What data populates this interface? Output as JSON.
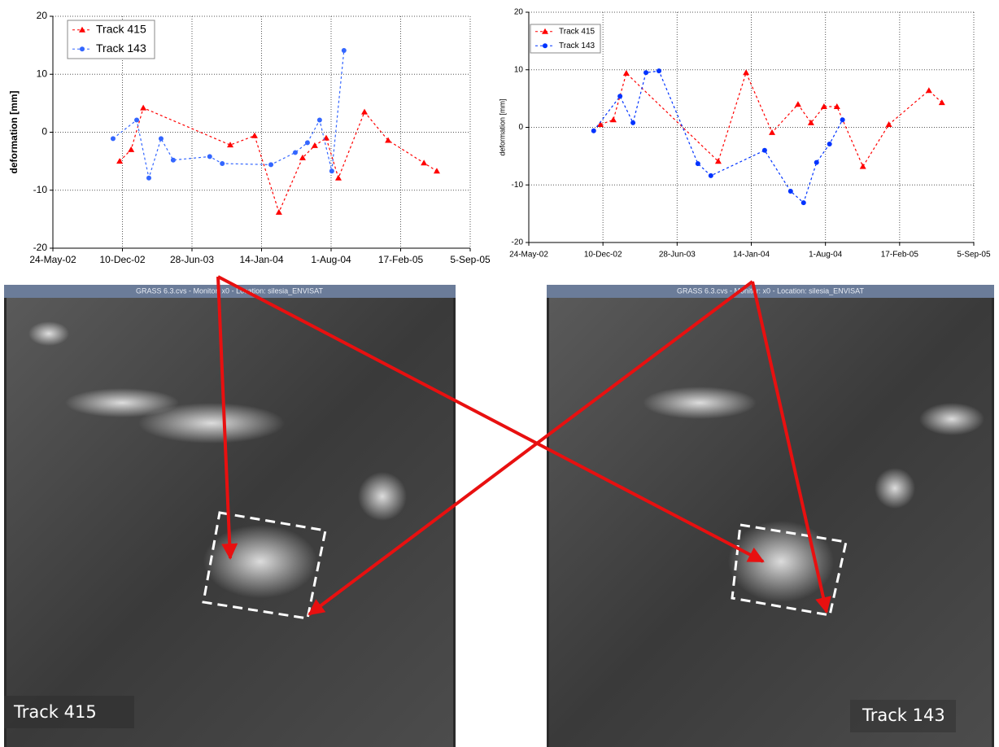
{
  "chart_data": [
    {
      "type": "line",
      "ylabel": "deformation [mm]",
      "xlim": [
        "2002-05-24",
        "2005-09-05"
      ],
      "xticks": [
        {
          "value": "2002-05-24",
          "label": "24-May-02"
        },
        {
          "value": "2002-12-10",
          "label": "10-Dec-02"
        },
        {
          "value": "2003-06-28",
          "label": "28-Jun-03"
        },
        {
          "value": "2004-01-14",
          "label": "14-Jan-04"
        },
        {
          "value": "2004-08-01",
          "label": "1-Aug-04"
        },
        {
          "value": "2005-02-17",
          "label": "17-Feb-05"
        },
        {
          "value": "2005-09-05",
          "label": "5-Sep-05"
        }
      ],
      "ylim": [
        -20,
        20
      ],
      "yticks": [
        -20,
        -10,
        0,
        10,
        20
      ],
      "grid": true,
      "series": [
        {
          "name": "Track 415",
          "color": "#ff0000",
          "marker": "triangle",
          "x": [
            "2002-12-02",
            "2003-01-04",
            "2003-02-08",
            "2003-10-16",
            "2003-12-25",
            "2004-03-04",
            "2004-05-11",
            "2004-06-15",
            "2004-07-18",
            "2004-08-22",
            "2004-11-05",
            "2005-01-12",
            "2005-04-25",
            "2005-06-01"
          ],
          "values": [
            -5,
            -3,
            4.2,
            -2.2,
            -0.6,
            -13.8,
            -4.4,
            -2.3,
            -1,
            -7.9,
            3.5,
            -1.4,
            -5.3,
            -6.7
          ]
        },
        {
          "name": "Track 143",
          "color": "#3366ff",
          "marker": "circle",
          "x": [
            "2002-11-13",
            "2003-01-20",
            "2003-02-24",
            "2003-03-31",
            "2003-05-05",
            "2003-08-18",
            "2003-09-23",
            "2004-02-10",
            "2004-04-20",
            "2004-05-25",
            "2004-06-29",
            "2004-08-03",
            "2004-09-07"
          ],
          "values": [
            -1.1,
            2.1,
            -7.9,
            -1.1,
            -4.8,
            -4.2,
            -5.4,
            -5.6,
            -3.5,
            -1.8,
            2.1,
            -6.7,
            14.1
          ]
        }
      ]
    },
    {
      "type": "line",
      "ylabel": "deformation [mm]",
      "xlim": [
        "2002-05-24",
        "2005-09-05"
      ],
      "xticks": [
        {
          "value": "2002-05-24",
          "label": "24-May-02"
        },
        {
          "value": "2002-12-10",
          "label": "10-Dec-02"
        },
        {
          "value": "2003-06-28",
          "label": "28-Jun-03"
        },
        {
          "value": "2004-01-14",
          "label": "14-Jan-04"
        },
        {
          "value": "2004-08-01",
          "label": "1-Aug-04"
        },
        {
          "value": "2005-02-17",
          "label": "17-Feb-05"
        },
        {
          "value": "2005-09-05",
          "label": "5-Sep-05"
        }
      ],
      "ylim": [
        -20,
        20
      ],
      "yticks": [
        -20,
        -10,
        0,
        10,
        20
      ],
      "grid": true,
      "series": [
        {
          "name": "Track 415",
          "color": "#ff0000",
          "marker": "triangle",
          "x": [
            "2002-12-03",
            "2003-01-07",
            "2003-02-11",
            "2003-10-17",
            "2003-12-31",
            "2004-03-10",
            "2004-05-19",
            "2004-06-23",
            "2004-07-28",
            "2004-09-01",
            "2004-11-10",
            "2005-01-19",
            "2005-05-07",
            "2005-06-11"
          ],
          "values": [
            0.5,
            1.3,
            9.4,
            -5.9,
            9.5,
            -0.9,
            4.0,
            0.8,
            3.6,
            3.6,
            -6.8,
            0.5,
            6.4,
            4.3
          ]
        },
        {
          "name": "Track 143",
          "color": "#0033ff",
          "marker": "circle",
          "x": [
            "2002-11-15",
            "2003-01-25",
            "2003-03-01",
            "2003-04-05",
            "2003-05-10",
            "2003-08-23",
            "2003-09-27",
            "2004-02-19",
            "2004-04-29",
            "2004-06-03",
            "2004-07-08",
            "2004-08-12",
            "2004-09-16"
          ],
          "values": [
            -0.6,
            5.4,
            0.8,
            9.5,
            9.8,
            -6.3,
            -8.4,
            -4.0,
            -11.1,
            -13.1,
            -6.1,
            -2.9,
            1.3
          ]
        }
      ]
    }
  ],
  "panels": [
    {
      "window_title": "GRASS 6.3.cvs - Monitor: x0 - Location: silesia_ENVISAT",
      "caption": "Track 415"
    },
    {
      "window_title": "GRASS 6.3.cvs - Monitor: x0 - Location: silesia_ENVISAT",
      "caption": "Track 143"
    }
  ]
}
